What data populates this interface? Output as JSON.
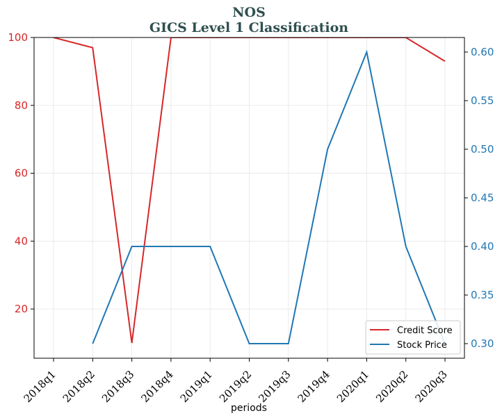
{
  "chart_data": {
    "type": "line",
    "title": "NOS",
    "subtitle": "GICS Level 1 Classification",
    "xlabel": "periods",
    "ylabel_left": "",
    "ylabel_right": "",
    "categories": [
      "2018q1",
      "2018q2",
      "2018q3",
      "2018q4",
      "2019q1",
      "2019q2",
      "2019q3",
      "2019q4",
      "2020q1",
      "2020q2",
      "2020q3"
    ],
    "series": [
      {
        "name": "Credit Score",
        "axis": "left",
        "color": "#d62728",
        "values": [
          100,
          97,
          10,
          100,
          100,
          100,
          100,
          100,
          100,
          100,
          93
        ]
      },
      {
        "name": "Stock Price",
        "axis": "right",
        "color": "#1f77b4",
        "values": [
          null,
          0.3,
          0.4,
          0.4,
          0.4,
          0.3,
          0.3,
          0.5,
          0.6,
          0.4,
          0.3
        ]
      }
    ],
    "ylim_left": [
      5.5,
      100
    ],
    "yticks_left": [
      "20",
      "40",
      "60",
      "80",
      "100"
    ],
    "ylim_right": [
      0.285,
      0.615
    ],
    "yticks_right": [
      "0.30",
      "0.35",
      "0.40",
      "0.45",
      "0.50",
      "0.55",
      "0.60"
    ],
    "grid": true,
    "legend_position": "lower-right"
  }
}
